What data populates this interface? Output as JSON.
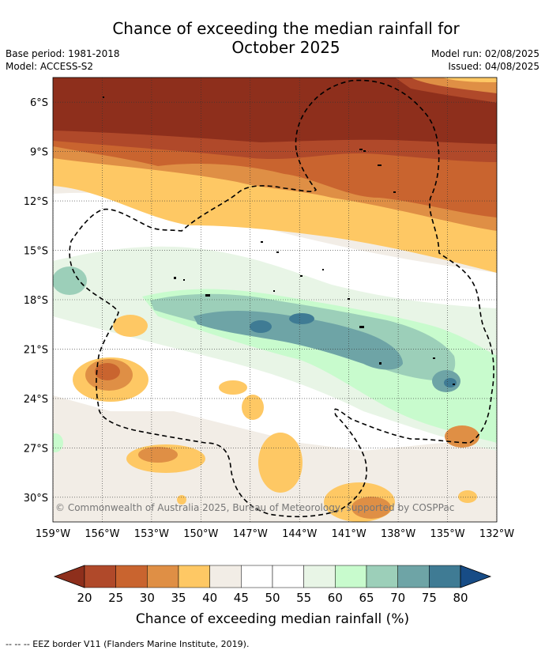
{
  "title_line1": "Chance of exceeding the median rainfall for",
  "title_line2": "October 2025",
  "base_period": "Base period: 1981-2018",
  "model": "Model: ACCESS-S2",
  "model_run": "Model run: 02/08/2025",
  "issued": "Issued: 04/08/2025",
  "copyright": "© Commonwealth of Australia 2025, Bureau of Meteorology, supported by COSPPac",
  "footer": "--  --  -- EEZ border V11 (Flanders Marine Institute, 2019).",
  "map": {
    "lon_range": [
      -159,
      -132
    ],
    "lat_range": [
      -31.5,
      -4.5
    ],
    "lat_ticks": [
      {
        "value": -6,
        "label": "6°S"
      },
      {
        "value": -9,
        "label": "9°S"
      },
      {
        "value": -12,
        "label": "12°S"
      },
      {
        "value": -15,
        "label": "15°S"
      },
      {
        "value": -18,
        "label": "18°S"
      },
      {
        "value": -21,
        "label": "21°S"
      },
      {
        "value": -24,
        "label": "24°S"
      },
      {
        "value": -27,
        "label": "27°S"
      },
      {
        "value": -30,
        "label": "30°S"
      }
    ],
    "lon_ticks": [
      {
        "value": -159,
        "label": "159°W"
      },
      {
        "value": -156,
        "label": "156°W"
      },
      {
        "value": -153,
        "label": "153°W"
      },
      {
        "value": -150,
        "label": "150°W"
      },
      {
        "value": -147,
        "label": "147°W"
      },
      {
        "value": -144,
        "label": "144°W"
      },
      {
        "value": -141,
        "label": "141°W"
      },
      {
        "value": -138,
        "label": "138°W"
      },
      {
        "value": -135,
        "label": "135°W"
      },
      {
        "value": -132,
        "label": "132°W"
      }
    ]
  },
  "colorbar": {
    "label": "Chance of exceeding median rainfall (%)",
    "levels": [
      "20",
      "25",
      "30",
      "35",
      "40",
      "45",
      "50",
      "55",
      "60",
      "65",
      "70",
      "75",
      "80"
    ],
    "colors": [
      "#8e2f1c",
      "#b0492a",
      "#c9642f",
      "#df8f45",
      "#fec864",
      "#f2ede6",
      "#ffffff",
      "#ffffff",
      "#e8f5e6",
      "#c8fbcd",
      "#9ccfb9",
      "#6ea4a6",
      "#3f7b94",
      "#174c86"
    ]
  }
}
